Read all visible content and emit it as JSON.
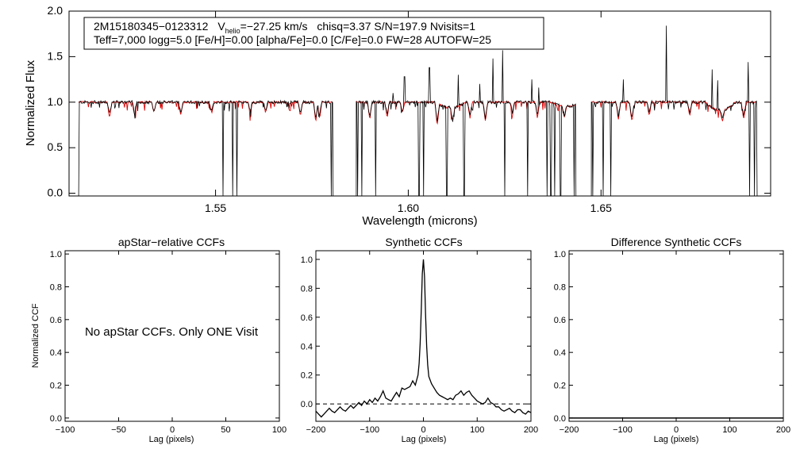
{
  "chart_data": [
    {
      "type": "line",
      "xlabel": "Wavelength (microns)",
      "ylabel": "Normalized Flux",
      "xlim": [
        1.512,
        1.694
      ],
      "ylim": [
        -0.03,
        2.0
      ],
      "x_ticks": [
        1.55,
        1.6,
        1.65
      ],
      "x_tick_labels": [
        "1.55",
        "1.60",
        "1.65"
      ],
      "y_ticks": [
        0.0,
        0.5,
        1.0,
        1.5,
        2.0
      ],
      "y_tick_labels": [
        "0.0",
        "0.5",
        "1.0",
        "1.5",
        "2.0"
      ],
      "info_line1": {
        "id": "2M15180345−0123312",
        "v_prefix": "V",
        "v_sub": "helio",
        "v_value": "=−27.25 km/s",
        "rest": "chisq=3.37  S/N=197.9  Nvisits=1"
      },
      "info_line2": "Teff=7,000 logg=5.0 [Fe/H]=0.00 [alpha/Fe]=0.0 [C/Fe]=0.0 FW=28 AUTOFW=25",
      "colors": {
        "observed": "#000000",
        "model": "#dd0000"
      },
      "chips": [
        {
          "range": [
            1.5145,
            1.5805
          ]
        },
        {
          "range": [
            1.5865,
            1.6435
          ]
        },
        {
          "range": [
            1.6475,
            1.6905
          ]
        }
      ],
      "spikes_up": [
        {
          "x": 1.596,
          "y": 1.1
        },
        {
          "x": 1.599,
          "y": 1.28
        },
        {
          "x": 1.6055,
          "y": 1.38
        },
        {
          "x": 1.613,
          "y": 1.3
        },
        {
          "x": 1.6185,
          "y": 1.2
        },
        {
          "x": 1.622,
          "y": 1.48
        },
        {
          "x": 1.6245,
          "y": 1.57
        },
        {
          "x": 1.632,
          "y": 1.25
        },
        {
          "x": 1.6338,
          "y": 1.16
        },
        {
          "x": 1.6558,
          "y": 1.25
        },
        {
          "x": 1.667,
          "y": 1.84
        },
        {
          "x": 1.6788,
          "y": 1.36
        },
        {
          "x": 1.6802,
          "y": 1.24
        },
        {
          "x": 1.6882,
          "y": 1.44
        }
      ],
      "spikes_down": [
        {
          "x": 1.5145,
          "y": -0.03
        },
        {
          "x": 1.552,
          "y": -0.03
        },
        {
          "x": 1.5545,
          "y": -0.03
        },
        {
          "x": 1.5555,
          "y": -0.03
        },
        {
          "x": 1.58,
          "y": -0.03
        },
        {
          "x": 1.5868,
          "y": -0.03
        },
        {
          "x": 1.588,
          "y": -0.03
        },
        {
          "x": 1.5915,
          "y": -0.03
        },
        {
          "x": 1.6028,
          "y": -0.03
        },
        {
          "x": 1.604,
          "y": -0.03
        },
        {
          "x": 1.61,
          "y": -0.03
        },
        {
          "x": 1.6145,
          "y": -0.03
        },
        {
          "x": 1.625,
          "y": -0.03
        },
        {
          "x": 1.631,
          "y": -0.03
        },
        {
          "x": 1.636,
          "y": -0.03
        },
        {
          "x": 1.637,
          "y": -0.03
        },
        {
          "x": 1.638,
          "y": -0.03
        },
        {
          "x": 1.6395,
          "y": -0.03
        },
        {
          "x": 1.643,
          "y": -0.03
        },
        {
          "x": 1.6478,
          "y": -0.03
        },
        {
          "x": 1.6505,
          "y": -0.03
        },
        {
          "x": 1.6525,
          "y": -0.03
        },
        {
          "x": 1.6885,
          "y": -0.03
        },
        {
          "x": 1.6898,
          "y": -0.03
        }
      ],
      "absorption_lines": [
        {
          "x": 1.5225,
          "depth": 0.18
        },
        {
          "x": 1.529,
          "depth": 0.15
        },
        {
          "x": 1.534,
          "depth": 0.12
        },
        {
          "x": 1.541,
          "depth": 0.15
        },
        {
          "x": 1.549,
          "depth": 0.12
        },
        {
          "x": 1.559,
          "depth": 0.12
        },
        {
          "x": 1.563,
          "depth": 0.12
        },
        {
          "x": 1.572,
          "depth": 0.15
        },
        {
          "x": 1.576,
          "depth": 0.22
        },
        {
          "x": 1.577,
          "depth": 0.18
        },
        {
          "x": 1.59,
          "depth": 0.2
        },
        {
          "x": 1.5945,
          "depth": 0.18
        },
        {
          "x": 1.5985,
          "depth": 0.12
        },
        {
          "x": 1.6075,
          "depth": 0.25
        },
        {
          "x": 1.6115,
          "depth": 0.15
        },
        {
          "x": 1.616,
          "depth": 0.18
        },
        {
          "x": 1.62,
          "depth": 0.22
        },
        {
          "x": 1.627,
          "depth": 0.15
        },
        {
          "x": 1.6335,
          "depth": 0.18
        },
        {
          "x": 1.6405,
          "depth": 0.12
        },
        {
          "x": 1.6545,
          "depth": 0.2
        },
        {
          "x": 1.658,
          "depth": 0.22
        },
        {
          "x": 1.6625,
          "depth": 0.15
        },
        {
          "x": 1.673,
          "depth": 0.15
        },
        {
          "x": 1.6815,
          "depth": 0.12
        },
        {
          "x": 1.687,
          "depth": 0.2
        }
      ],
      "broad_dips": [
        {
          "x": 1.611,
          "depth": 0.06,
          "width": 0.004
        },
        {
          "x": 1.641,
          "depth": 0.05,
          "width": 0.004
        },
        {
          "x": 1.681,
          "depth": 0.09,
          "width": 0.004
        }
      ]
    },
    {
      "type": "line",
      "title": "apStar−relative CCFs",
      "xlabel": "Lag (pixels)",
      "ylabel": "Normalized CCF",
      "xlim": [
        -100,
        100
      ],
      "ylim": [
        -0.02,
        1.02
      ],
      "x_ticks": [
        -100,
        -50,
        0,
        50,
        100
      ],
      "x_tick_labels": [
        "−100",
        "−50",
        "0",
        "50",
        "100"
      ],
      "y_ticks": [
        0.0,
        0.2,
        0.4,
        0.6,
        0.8,
        1.0
      ],
      "y_tick_labels": [
        "0.0",
        "0.2",
        "0.4",
        "0.6",
        "0.8",
        "1.0"
      ],
      "annotation": "No apStar CCFs.  Only ONE Visit"
    },
    {
      "type": "line",
      "title": "Synthetic CCFs",
      "xlabel": "Lag (pixels)",
      "xlim": [
        -200,
        200
      ],
      "ylim": [
        -0.12,
        1.06
      ],
      "x_ticks": [
        -200,
        -100,
        0,
        100,
        200
      ],
      "x_tick_labels": [
        "−200",
        "−100",
        "0",
        "100",
        "200"
      ],
      "y_ticks": [
        0.0,
        0.2,
        0.4,
        0.6,
        0.8,
        1.0
      ],
      "y_tick_labels": [
        "0.0",
        "0.2",
        "0.4",
        "0.6",
        "0.8",
        "1.0"
      ],
      "zero_line": "dashed",
      "series": [
        {
          "x": [
            -200,
            -195,
            -190,
            -185,
            -180,
            -175,
            -170,
            -165,
            -160,
            -155,
            -150,
            -145,
            -140,
            -135,
            -130,
            -125,
            -120,
            -115,
            -110,
            -105,
            -100,
            -95,
            -90,
            -85,
            -80,
            -75,
            -70,
            -65,
            -60,
            -55,
            -50,
            -45,
            -40,
            -35,
            -30,
            -25,
            -20,
            -15,
            -10,
            -8,
            -6,
            -4,
            -2,
            0,
            2,
            4,
            6,
            8,
            10,
            15,
            20,
            25,
            30,
            35,
            40,
            45,
            50,
            55,
            60,
            65,
            70,
            75,
            80,
            85,
            90,
            95,
            100,
            105,
            110,
            115,
            120,
            125,
            130,
            135,
            140,
            145,
            150,
            155,
            160,
            165,
            170,
            175,
            180,
            185,
            190,
            195,
            200
          ],
          "y": [
            -0.05,
            -0.07,
            -0.09,
            -0.07,
            -0.05,
            -0.03,
            -0.05,
            -0.06,
            -0.04,
            -0.02,
            -0.04,
            -0.05,
            -0.03,
            -0.01,
            -0.03,
            -0.01,
            0.01,
            -0.01,
            0.02,
            0.0,
            0.03,
            0.01,
            0.04,
            0.02,
            0.05,
            0.09,
            0.04,
            0.03,
            0.02,
            0.05,
            0.08,
            0.05,
            0.11,
            0.1,
            0.11,
            0.12,
            0.16,
            0.13,
            0.2,
            0.28,
            0.42,
            0.65,
            0.9,
            1.0,
            0.88,
            0.62,
            0.4,
            0.27,
            0.19,
            0.14,
            0.11,
            0.08,
            0.06,
            0.05,
            0.04,
            0.03,
            0.04,
            0.03,
            0.06,
            0.07,
            0.09,
            0.06,
            0.08,
            0.09,
            0.06,
            0.04,
            0.02,
            0.01,
            0.0,
            0.01,
            0.04,
            0.01,
            0.0,
            -0.02,
            -0.02,
            -0.04,
            -0.05,
            -0.04,
            -0.03,
            -0.05,
            -0.06,
            -0.04,
            -0.04,
            -0.06,
            -0.07,
            -0.05,
            -0.06
          ]
        }
      ]
    },
    {
      "type": "line",
      "title": "Difference Synthetic CCFs",
      "xlabel": "Lag (pixels)",
      "xlim": [
        -200,
        200
      ],
      "ylim": [
        -0.02,
        1.02
      ],
      "x_ticks": [
        -200,
        -100,
        0,
        100,
        200
      ],
      "x_tick_labels": [
        "−200",
        "−100",
        "0",
        "100",
        "200"
      ],
      "y_ticks": [
        0.0,
        0.2,
        0.4,
        0.6,
        0.8,
        1.0
      ],
      "y_tick_labels": [
        "0.0",
        "0.2",
        "0.4",
        "0.6",
        "0.8",
        "1.0"
      ],
      "series": [
        {
          "x": [
            -200,
            200
          ],
          "y": [
            0.0,
            0.0
          ]
        }
      ]
    }
  ]
}
